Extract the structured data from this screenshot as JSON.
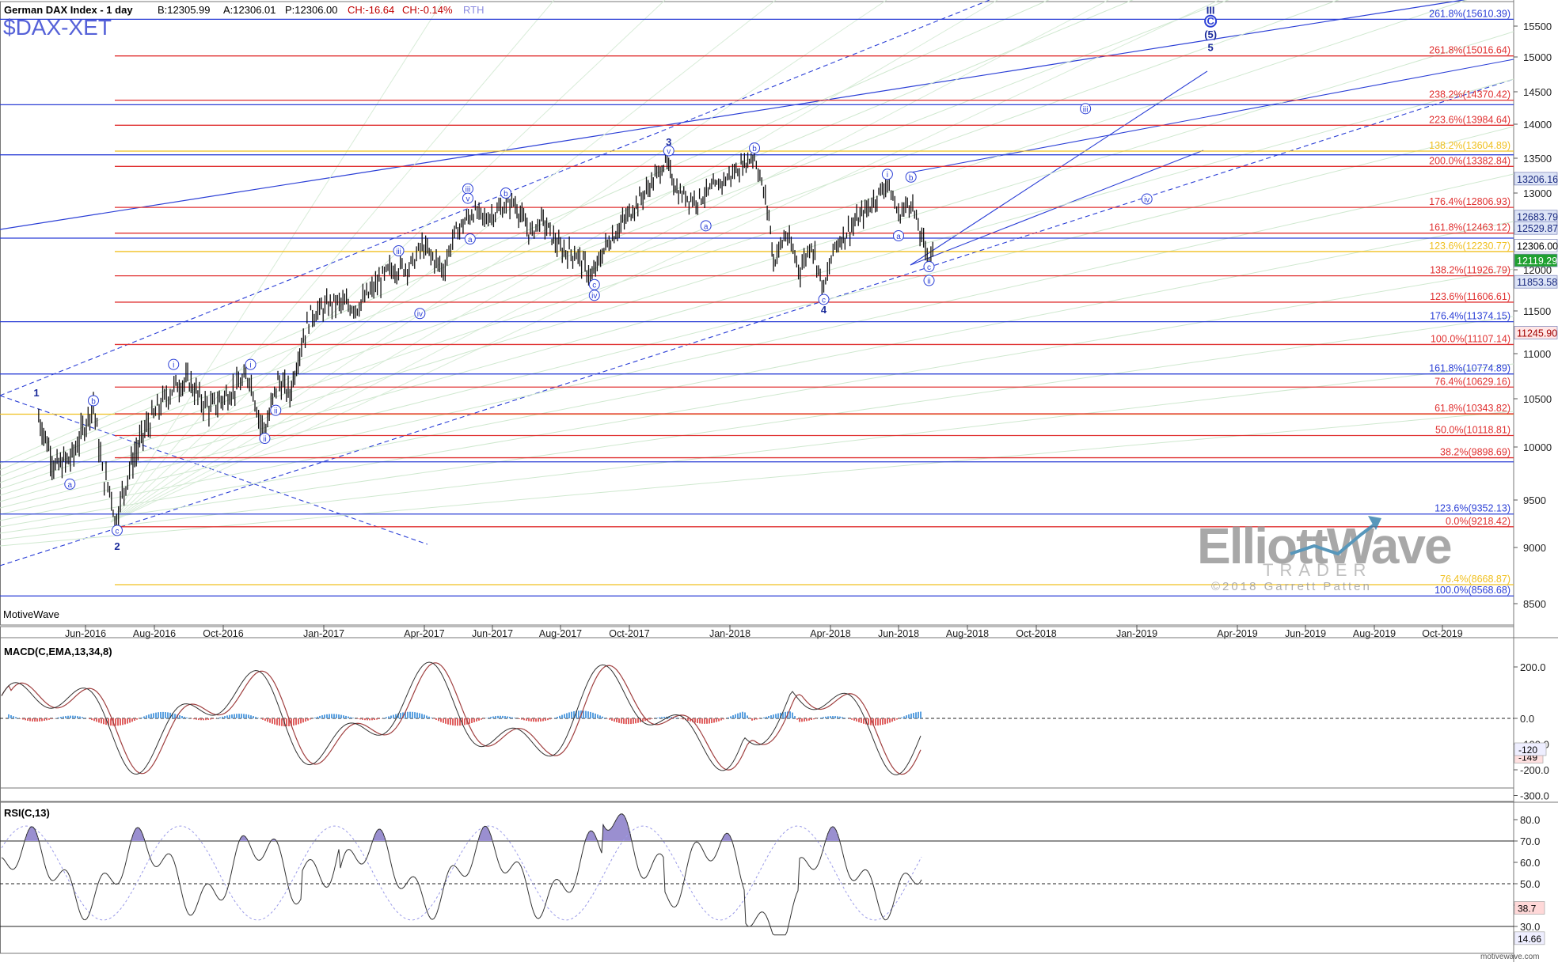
{
  "header": {
    "title": "German DAX Index - 1 day",
    "bid": "B:12305.99",
    "ask": "A:12306.01",
    "price": "P:12306.00",
    "change": "CH:-16.64",
    "change_pct": "CH:-0.14%",
    "session": "RTH",
    "symbol": "$DAX-XET",
    "footer_brand": "MotiveWave",
    "watermark_main": "ElliottWave",
    "watermark_sub": "TRADER",
    "copyright": "©2018 Garrett Patten",
    "bottom_credit": "motivewave.com"
  },
  "colors": {
    "red": "#e03030",
    "blue": "#2b3fd6",
    "gold": "#f0c020",
    "candle": "#000000",
    "macd_pos": "#5aa0e0",
    "macd_neg": "#e06060",
    "rsi": "#333333",
    "rsi_fill": "#9a8fd0"
  },
  "chart_data": [
    {
      "type": "line",
      "title": "German DAX Index - 1 day",
      "x_dates": [
        "Jun-2016",
        "Aug-2016",
        "Oct-2016",
        "Jan-2017",
        "Apr-2017",
        "Jun-2017",
        "Aug-2017",
        "Oct-2017",
        "Jan-2018",
        "Apr-2018",
        "Jun-2018",
        "Aug-2018",
        "Oct-2018",
        "Jan-2019",
        "Apr-2019",
        "Jun-2019",
        "Aug-2019",
        "Oct-2019"
      ],
      "y_ticks": [
        8500,
        9000,
        9500,
        10000,
        10500,
        11000,
        11500,
        12000,
        12500,
        13000,
        13500,
        14000,
        14500,
        15000,
        15500
      ],
      "ylim": [
        8350,
        15800
      ],
      "price_series_points": [
        {
          "d": "2016-04-20",
          "v": 10300
        },
        {
          "d": "2016-05-05",
          "v": 9800
        },
        {
          "d": "2016-05-20",
          "v": 9900
        },
        {
          "d": "2016-06-08",
          "v": 10450
        },
        {
          "d": "2016-06-16",
          "v": 9750
        },
        {
          "d": "2016-06-24",
          "v": 9560
        },
        {
          "d": "2016-06-27",
          "v": 9270
        },
        {
          "d": "2016-07-10",
          "v": 9800
        },
        {
          "d": "2016-07-25",
          "v": 10200
        },
        {
          "d": "2016-08-10",
          "v": 10500
        },
        {
          "d": "2016-08-20",
          "v": 10650
        },
        {
          "d": "2016-09-01",
          "v": 10700
        },
        {
          "d": "2016-09-10",
          "v": 10500
        },
        {
          "d": "2016-09-20",
          "v": 10400
        },
        {
          "d": "2016-10-10",
          "v": 10600
        },
        {
          "d": "2016-10-25",
          "v": 10750
        },
        {
          "d": "2016-11-04",
          "v": 10250
        },
        {
          "d": "2016-11-09",
          "v": 10180
        },
        {
          "d": "2016-11-20",
          "v": 10700
        },
        {
          "d": "2016-12-01",
          "v": 10550
        },
        {
          "d": "2016-12-10",
          "v": 11050
        },
        {
          "d": "2016-12-20",
          "v": 11450
        },
        {
          "d": "2017-01-10",
          "v": 11600
        },
        {
          "d": "2017-01-31",
          "v": 11550
        },
        {
          "d": "2017-02-10",
          "v": 11700
        },
        {
          "d": "2017-03-01",
          "v": 12000
        },
        {
          "d": "2017-03-20",
          "v": 12050
        },
        {
          "d": "2017-03-30",
          "v": 12300
        },
        {
          "d": "2017-04-18",
          "v": 12000
        },
        {
          "d": "2017-04-28",
          "v": 12450
        },
        {
          "d": "2017-05-15",
          "v": 12750
        },
        {
          "d": "2017-05-25",
          "v": 12650
        },
        {
          "d": "2017-06-10",
          "v": 12800
        },
        {
          "d": "2017-06-20",
          "v": 12880
        },
        {
          "d": "2017-07-05",
          "v": 12450
        },
        {
          "d": "2017-07-15",
          "v": 12650
        },
        {
          "d": "2017-08-01",
          "v": 12250
        },
        {
          "d": "2017-08-15",
          "v": 12200
        },
        {
          "d": "2017-08-29",
          "v": 11900
        },
        {
          "d": "2017-09-10",
          "v": 12300
        },
        {
          "d": "2017-09-25",
          "v": 12600
        },
        {
          "d": "2017-10-15",
          "v": 13000
        },
        {
          "d": "2017-11-03",
          "v": 13450
        },
        {
          "d": "2017-11-15",
          "v": 13000
        },
        {
          "d": "2017-12-01",
          "v": 12900
        },
        {
          "d": "2017-12-20",
          "v": 13100
        },
        {
          "d": "2018-01-05",
          "v": 13300
        },
        {
          "d": "2018-01-23",
          "v": 13550
        },
        {
          "d": "2018-02-05",
          "v": 12700
        },
        {
          "d": "2018-02-09",
          "v": 12100
        },
        {
          "d": "2018-02-20",
          "v": 12450
        },
        {
          "d": "2018-03-05",
          "v": 12000
        },
        {
          "d": "2018-03-15",
          "v": 12350
        },
        {
          "d": "2018-03-26",
          "v": 11750
        },
        {
          "d": "2018-04-05",
          "v": 12300
        },
        {
          "d": "2018-04-20",
          "v": 12550
        },
        {
          "d": "2018-05-05",
          "v": 12800
        },
        {
          "d": "2018-05-22",
          "v": 13150
        },
        {
          "d": "2018-06-01",
          "v": 12700
        },
        {
          "d": "2018-06-12",
          "v": 12900
        },
        {
          "d": "2018-06-20",
          "v": 12450
        },
        {
          "d": "2018-06-28",
          "v": 12150
        },
        {
          "d": "2018-07-03",
          "v": 12306
        }
      ],
      "horizontal_levels": [
        {
          "label": "261.8%(15610.39)",
          "value": 15610.39,
          "color": "blue",
          "style": "solid"
        },
        {
          "label": "261.8%(15016.64)",
          "value": 15016.64,
          "color": "red",
          "style": "solid"
        },
        {
          "label": "238.2%(14370.42)",
          "value": 14370.42,
          "color": "red",
          "style": "solid"
        },
        {
          "label": "223.6%(13984.64)",
          "value": 13984.64,
          "color": "red",
          "style": "solid"
        },
        {
          "label": "138.2%(13604.89)",
          "value": 13604.89,
          "color": "gold",
          "style": "solid"
        },
        {
          "label": "200.0%(13382.84)",
          "value": 13382.84,
          "color": "red",
          "style": "solid"
        },
        {
          "label": "176.4%(12806.93)",
          "value": 12806.93,
          "color": "red",
          "style": "solid"
        },
        {
          "label": "161.8%(12463.12)",
          "value": 12463.12,
          "color": "red",
          "style": "solid"
        },
        {
          "label": "123.6%(12230.77)",
          "value": 12230.77,
          "color": "gold",
          "style": "solid"
        },
        {
          "label": "138.2%(11926.79)",
          "value": 11926.79,
          "color": "red",
          "style": "solid"
        },
        {
          "label": "123.6%(11606.61)",
          "value": 11606.61,
          "color": "red",
          "style": "solid"
        },
        {
          "label": "176.4%(11374.15)",
          "value": 11374.15,
          "color": "blue",
          "style": "solid"
        },
        {
          "label": "100.0%(11107.14)",
          "value": 11107.14,
          "color": "red",
          "style": "solid"
        },
        {
          "label": "161.8%(10774.89)",
          "value": 10774.89,
          "color": "blue",
          "style": "solid"
        },
        {
          "label": "76.4%(10629.16)",
          "value": 10629.16,
          "color": "red",
          "style": "solid"
        },
        {
          "label": "61.8%(10343.82)",
          "value": 10343.82,
          "color": "red",
          "style": "solid"
        },
        {
          "label": "50.0%(10118.81)",
          "value": 10118.81,
          "color": "red",
          "style": "solid"
        },
        {
          "label": "38.2%(9898.69)",
          "value": 9898.69,
          "color": "red",
          "style": "solid"
        },
        {
          "label": "123.6%(9352.13)",
          "value": 9352.13,
          "color": "blue",
          "style": "solid"
        },
        {
          "label": "0.0%(9218.42)",
          "value": 9218.42,
          "color": "red",
          "style": "solid"
        },
        {
          "label": "76.4%(8668.87)",
          "value": 8668.87,
          "color": "gold",
          "style": "solid"
        },
        {
          "label": "100.0%(8568.68)",
          "value": 8568.68,
          "color": "blue",
          "style": "solid"
        }
      ],
      "extra_levels_unlabeled": [
        {
          "value": 14300,
          "color": "blue"
        },
        {
          "value": 13550,
          "color": "blue"
        },
        {
          "value": 12400,
          "color": "blue"
        },
        {
          "value": 10340,
          "color": "gold"
        },
        {
          "value": 9860,
          "color": "blue"
        }
      ],
      "price_flags": [
        {
          "label": "13206.16",
          "value": 13206.16,
          "bg": "#dde4f6",
          "fg": "#1a2a80"
        },
        {
          "label": "12683.79",
          "value": 12683.79,
          "bg": "#dde4f6",
          "fg": "#1a2a80"
        },
        {
          "label": "12529.87",
          "value": 12529.87,
          "bg": "#dde4f6",
          "fg": "#1a2a80"
        },
        {
          "label": "12306.00",
          "value": 12306,
          "bg": "#ffffff",
          "fg": "#000000"
        },
        {
          "label": "12119.29",
          "value": 12119.29,
          "bg": "#1fa030",
          "fg": "#ffffff"
        },
        {
          "label": "11853.58",
          "value": 11853.58,
          "bg": "#dde4f6",
          "fg": "#1a2a80"
        },
        {
          "label": "11245.90",
          "value": 11245.9,
          "bg": "#ffe6e6",
          "fg": "#a00000"
        }
      ],
      "wave_labels": [
        {
          "t": "1",
          "d": "2016-04-18",
          "v": 10560,
          "circle": false,
          "bold": true
        },
        {
          "t": "a",
          "d": "2016-05-18",
          "v": 9650,
          "circle": true
        },
        {
          "t": "b",
          "d": "2016-06-08",
          "v": 10480,
          "circle": true
        },
        {
          "t": "c",
          "d": "2016-06-29",
          "v": 9180,
          "circle": true
        },
        {
          "t": "2",
          "d": "2016-06-29",
          "v": 9010,
          "circle": false,
          "bold": true
        },
        {
          "t": "i",
          "d": "2016-08-18",
          "v": 10880,
          "circle": true
        },
        {
          "t": "i",
          "d": "2016-10-26",
          "v": 10880,
          "circle": true
        },
        {
          "t": "ii",
          "d": "2016-11-08",
          "v": 10090,
          "circle": true
        },
        {
          "t": "ii",
          "d": "2016-11-18",
          "v": 10380,
          "circle": true
        },
        {
          "t": "iii",
          "d": "2017-03-09",
          "v": 12240,
          "circle": true
        },
        {
          "t": "iv",
          "d": "2017-03-28",
          "v": 11470,
          "circle": true
        },
        {
          "t": "a",
          "d": "2017-05-12",
          "v": 12390,
          "circle": true
        },
        {
          "t": "iii",
          "d": "2017-05-10",
          "v": 13060,
          "circle": true
        },
        {
          "t": "v",
          "d": "2017-05-10",
          "v": 12930,
          "circle": true
        },
        {
          "t": "b",
          "d": "2017-06-13",
          "v": 13000,
          "circle": true
        },
        {
          "t": "c",
          "d": "2017-08-31",
          "v": 11820,
          "circle": true
        },
        {
          "t": "iv",
          "d": "2017-08-31",
          "v": 11690,
          "circle": true
        },
        {
          "t": "3",
          "d": "2017-11-06",
          "v": 13730,
          "circle": false,
          "bold": true
        },
        {
          "t": "v",
          "d": "2017-11-06",
          "v": 13610,
          "circle": true
        },
        {
          "t": "a",
          "d": "2017-12-10",
          "v": 12560,
          "circle": true
        },
        {
          "t": "b",
          "d": "2018-01-23",
          "v": 13650,
          "circle": true
        },
        {
          "t": "c",
          "d": "2018-03-26",
          "v": 11640,
          "circle": true
        },
        {
          "t": "4",
          "d": "2018-03-26",
          "v": 11510,
          "circle": false,
          "bold": true
        },
        {
          "t": "i",
          "d": "2018-05-22",
          "v": 13270,
          "circle": true
        },
        {
          "t": "a",
          "d": "2018-06-01",
          "v": 12430,
          "circle": true
        },
        {
          "t": "b",
          "d": "2018-06-12",
          "v": 13230,
          "circle": true
        },
        {
          "t": "c",
          "d": "2018-06-28",
          "v": 12040,
          "circle": true
        },
        {
          "t": "ii",
          "d": "2018-06-28",
          "v": 11870,
          "circle": true
        },
        {
          "t": "iii",
          "d": "2018-11-15",
          "v": 14240,
          "circle": true
        },
        {
          "t": "iv",
          "d": "2019-01-10",
          "v": 12920,
          "circle": true
        },
        {
          "t": "III",
          "d": "2019-03-08",
          "v": 15750,
          "circle": false,
          "bold": true
        },
        {
          "t": "C",
          "d": "2019-03-08",
          "v": 15580,
          "circle": true,
          "bold": true
        },
        {
          "t": "(5)",
          "d": "2019-03-08",
          "v": 15360,
          "circle": false,
          "bold": true
        },
        {
          "t": "5",
          "d": "2019-03-08",
          "v": 15150,
          "circle": false,
          "bold": true
        }
      ]
    },
    {
      "type": "bar",
      "title": "MACD(C,EMA,13,34,8)",
      "y_ticks": [
        200,
        0,
        -100,
        -200,
        -300
      ],
      "ylim": [
        -320,
        260
      ],
      "flag": {
        "label": "-149",
        "value": -149
      },
      "flag2": {
        "label": "-120",
        "value": -120
      }
    },
    {
      "type": "line",
      "title": "RSI(C,13)",
      "y_ticks": [
        80,
        70,
        60,
        50,
        40,
        30
      ],
      "ylim": [
        23,
        88
      ],
      "flag": {
        "label": "38.7",
        "value": 38.7
      },
      "flag2": {
        "label": "14.66",
        "value": 24.5
      },
      "ref_lines": [
        70,
        50,
        30
      ]
    }
  ]
}
